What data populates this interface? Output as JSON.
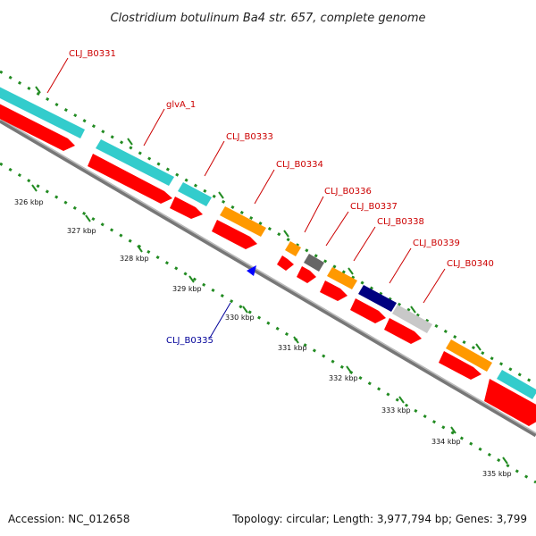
{
  "header": {
    "title": "Clostridium botulinum Ba4 str. 657, complete genome"
  },
  "footer": {
    "accession": "Accession: NC_012658",
    "topology": "Topology: circular; Length: 3,977,794 bp; Genes: 3,799"
  },
  "colors": {
    "backbone": "#888888",
    "cds": "#ff0000",
    "gene_teal": "#33cccc",
    "gene_orange": "#ff9900",
    "gene_grey": "#666666",
    "gene_navy": "#000080",
    "gene_silver": "#c8c8c8",
    "gene_reverse": "#0000ff",
    "forward_label": "#cc0000",
    "reverse_label": "#000099",
    "ticks": "#228b22"
  },
  "gene_labels": [
    {
      "id": "CLJ_B0331",
      "strand": "forward"
    },
    {
      "id": "glvA_1",
      "strand": "forward"
    },
    {
      "id": "CLJ_B0333",
      "strand": "forward"
    },
    {
      "id": "CLJ_B0334",
      "strand": "forward"
    },
    {
      "id": "CLJ_B0336",
      "strand": "forward"
    },
    {
      "id": "CLJ_B0337",
      "strand": "forward"
    },
    {
      "id": "CLJ_B0338",
      "strand": "forward"
    },
    {
      "id": "CLJ_B0339",
      "strand": "forward"
    },
    {
      "id": "CLJ_B0340",
      "strand": "forward"
    },
    {
      "id": "CLJ_B0335",
      "strand": "reverse"
    }
  ],
  "kbp_ticks": [
    "326 kbp",
    "327 kbp",
    "328 kbp",
    "329 kbp",
    "330 kbp",
    "331 kbp",
    "332 kbp",
    "333 kbp",
    "334 kbp",
    "335 kbp"
  ]
}
